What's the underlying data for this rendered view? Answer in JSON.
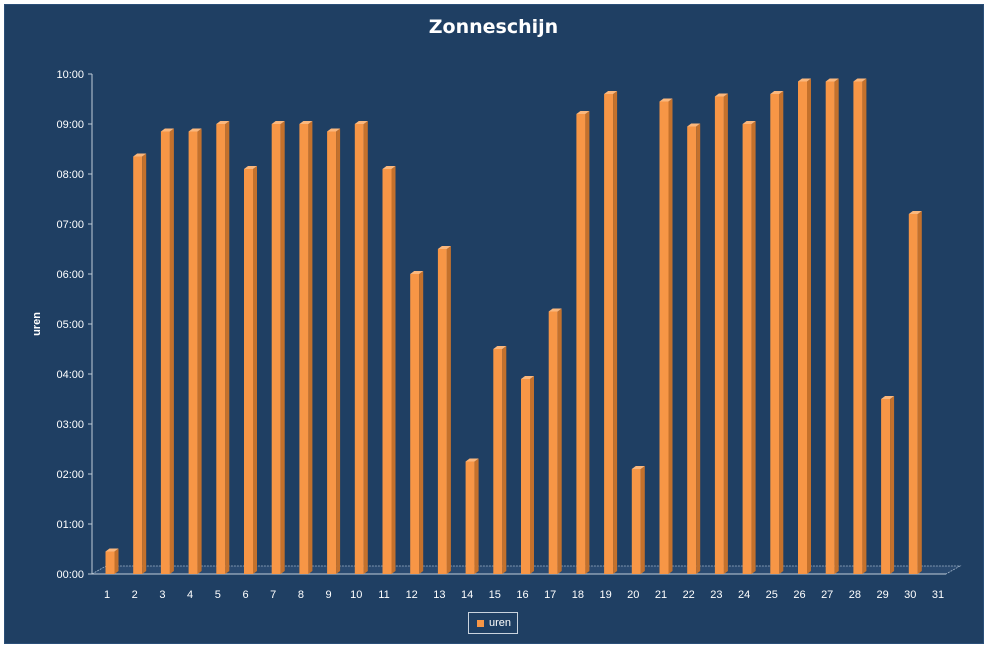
{
  "chart_data": {
    "type": "bar",
    "title": "Zonneschijn",
    "ylabel": "uren",
    "xlabel": "",
    "y_tick_labels": [
      "00:00",
      "01:00",
      "02:00",
      "03:00",
      "04:00",
      "05:00",
      "06:00",
      "07:00",
      "08:00",
      "09:00",
      "10:00"
    ],
    "ylim_hours": [
      0,
      10
    ],
    "categories": [
      "1",
      "2",
      "3",
      "4",
      "5",
      "6",
      "7",
      "8",
      "9",
      "10",
      "11",
      "12",
      "13",
      "14",
      "15",
      "16",
      "17",
      "18",
      "19",
      "20",
      "21",
      "22",
      "23",
      "24",
      "25",
      "26",
      "27",
      "28",
      "29",
      "30",
      "31"
    ],
    "series": [
      {
        "name": "uren",
        "color": "#f79646",
        "values_hours": [
          0.45,
          8.35,
          8.85,
          8.85,
          9.0,
          8.1,
          9.0,
          9.0,
          8.85,
          9.0,
          8.1,
          6.0,
          6.5,
          2.25,
          4.5,
          3.9,
          5.25,
          9.2,
          9.6,
          2.1,
          9.45,
          8.95,
          9.55,
          9.0,
          9.6,
          9.85,
          9.85,
          9.85,
          3.5,
          7.2,
          null
        ]
      }
    ],
    "legend_position": "bottom",
    "grid": false
  }
}
